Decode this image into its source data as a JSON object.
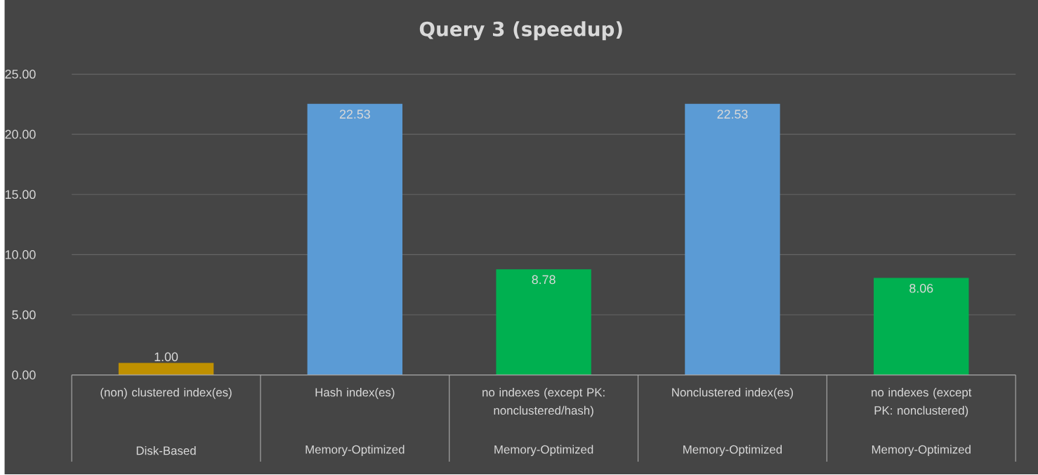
{
  "chart_data": {
    "type": "bar",
    "title": "Query 3 (speedup)",
    "categories": [
      "(non) clustered index(es)",
      "Hash index(es)",
      "no indexes (except PK: nonclustered/hash)",
      "Nonclustered index(es)",
      "no indexes (except PK: nonclustered)"
    ],
    "values": [
      1.0,
      22.53,
      8.78,
      22.53,
      8.06
    ],
    "value_labels": [
      "1.00",
      "22.53",
      "8.78",
      "22.53",
      "8.06"
    ],
    "colors": [
      "#bf9000",
      "#5b9bd5",
      "#00b050",
      "#5b9bd5",
      "#00b050"
    ],
    "ylim": [
      0,
      25
    ],
    "yticks": [
      {
        "value": 0,
        "label": "0.00"
      },
      {
        "value": 5,
        "label": "5.00"
      },
      {
        "value": 10,
        "label": "10.00"
      },
      {
        "value": 15,
        "label": "15.00"
      },
      {
        "value": 20,
        "label": "20.00"
      },
      {
        "value": 25,
        "label": "25.00"
      }
    ],
    "grid": "y",
    "annotations": [
      "Disk-Based",
      "Memory-Optimized",
      "Memory-Optimized",
      "Memory-Optimized",
      "Memory-Optimized"
    ]
  }
}
